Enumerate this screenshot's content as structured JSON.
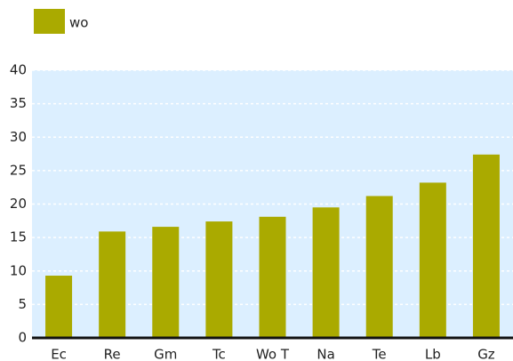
{
  "chart_data": {
    "type": "bar",
    "categories": [
      "Ec",
      "Re",
      "Gm",
      "Tc",
      "Wo T",
      "Na",
      "Te",
      "Lb",
      "Gz"
    ],
    "series": [
      {
        "name": "wo",
        "color": "#aaaa00",
        "values": [
          9.3,
          15.9,
          16.6,
          17.4,
          18.1,
          19.5,
          21.2,
          23.2,
          27.4
        ]
      }
    ],
    "ylim": [
      0,
      40
    ],
    "yticks": [
      0,
      5,
      10,
      15,
      20,
      25,
      30,
      35,
      40
    ],
    "grid": true,
    "legend": "top-left"
  }
}
